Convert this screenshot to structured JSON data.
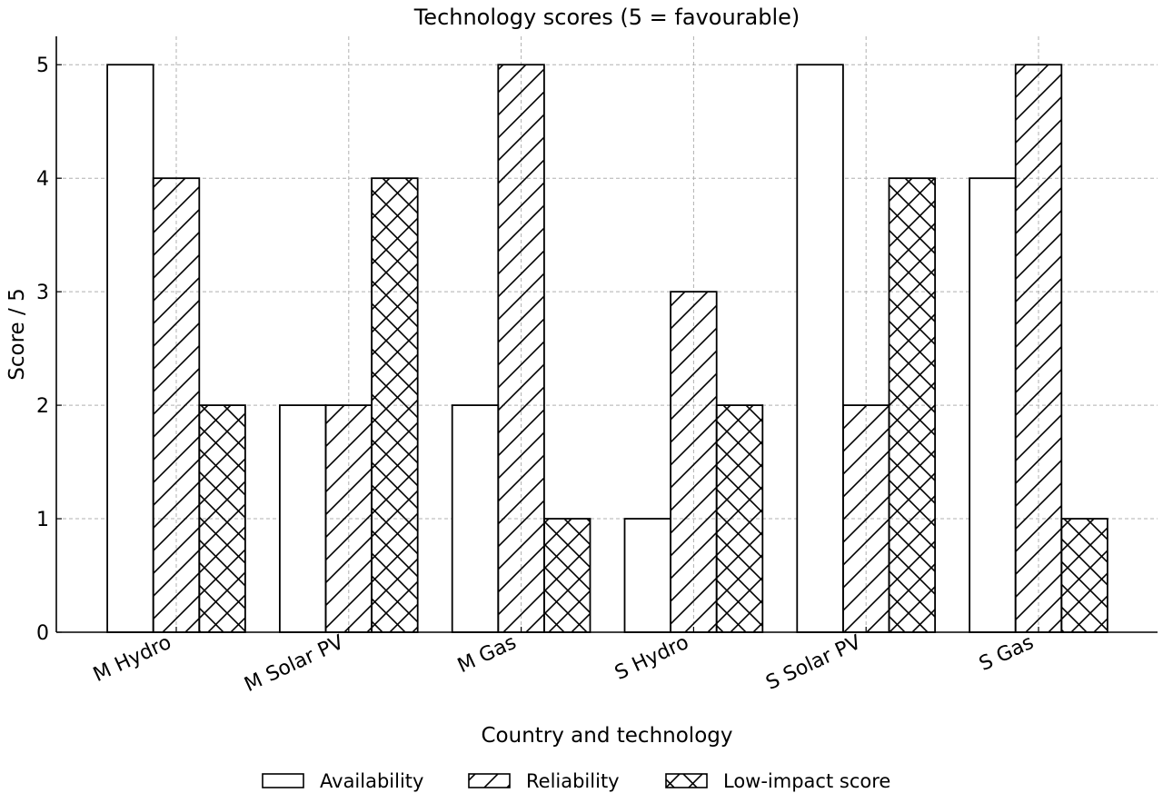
{
  "chart_data": {
    "type": "bar",
    "title": "Technology scores (5 = favourable)",
    "xlabel": "Country and technology",
    "ylabel": "Score / 5",
    "categories": [
      "M Hydro",
      "M Solar PV",
      "M Gas",
      "S Hydro",
      "S Solar PV",
      "S Gas"
    ],
    "series": [
      {
        "name": "Availability",
        "values": [
          5,
          2,
          2,
          1,
          5,
          4
        ],
        "hatch": "none"
      },
      {
        "name": "Reliability",
        "values": [
          4,
          2,
          5,
          3,
          2,
          5
        ],
        "hatch": "diagonal"
      },
      {
        "name": "Low-impact score",
        "values": [
          2,
          4,
          1,
          2,
          4,
          1
        ],
        "hatch": "cross"
      }
    ],
    "ylim": [
      0,
      5.25
    ],
    "yticks": [
      0,
      1,
      2,
      3,
      4,
      5
    ],
    "grid": true,
    "legend_position": "bottom-center",
    "colors": {
      "bar_fill": "#ffffff",
      "bar_edge": "#000000",
      "grid": "#b0b0b0",
      "axis": "#000000"
    }
  }
}
